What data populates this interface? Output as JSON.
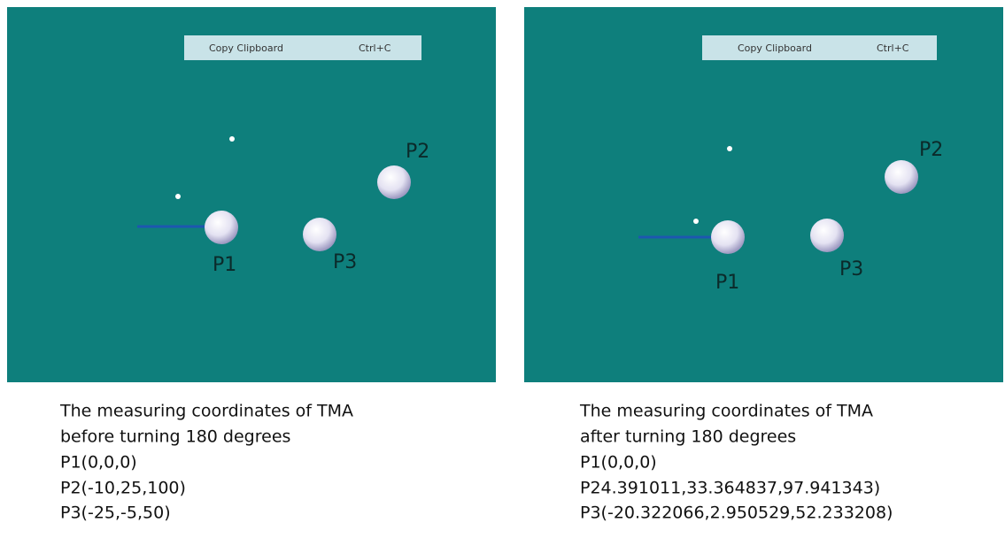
{
  "panels": [
    {
      "menu": {
        "label": "Copy Clipboard",
        "shortcut": "Ctrl+C"
      },
      "points": [
        {
          "label": "P1"
        },
        {
          "label": "P2"
        },
        {
          "label": "P3"
        }
      ],
      "caption": [
        "The measuring coordinates of TMA",
        "before turning 180 degrees",
        "P1(0,0,0)",
        "P2(-10,25,100)",
        "P3(-25,-5,50)"
      ]
    },
    {
      "menu": {
        "label": "Copy Clipboard",
        "shortcut": "Ctrl+C"
      },
      "points": [
        {
          "label": "P1"
        },
        {
          "label": "P2"
        },
        {
          "label": "P3"
        }
      ],
      "caption": [
        "The measuring coordinates of TMA",
        "after turning 180 degrees",
        "P1(0,0,0)",
        "P24.391011,33.364837,97.941343)",
        "P3(-20.322066,2.950529,52.233208)"
      ]
    }
  ]
}
